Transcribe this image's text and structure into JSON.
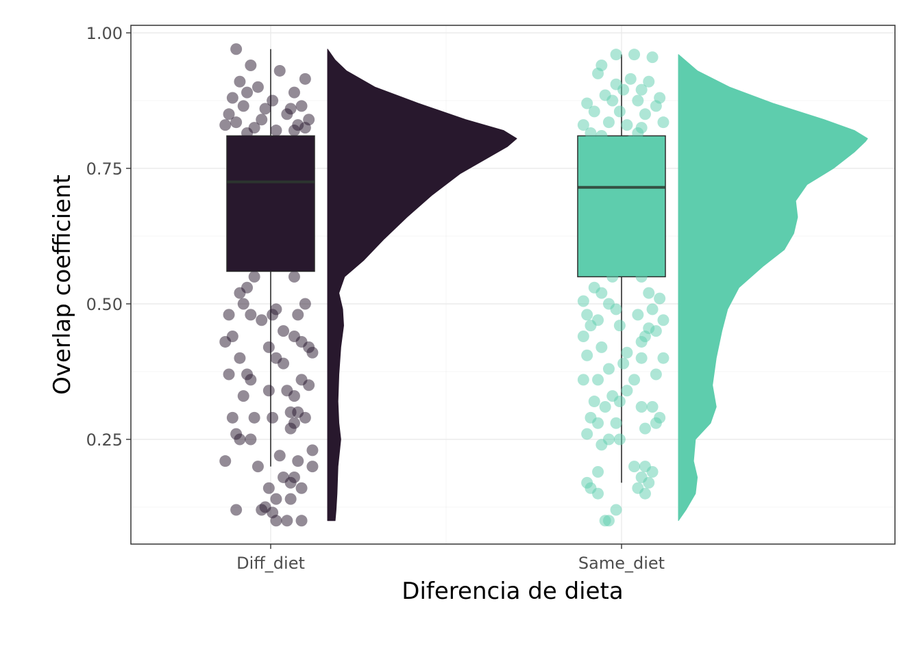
{
  "chart_data": {
    "type": "raincloud",
    "title": "",
    "xlabel": "Diferencia de dieta",
    "ylabel": "Overlap coefficient",
    "categories": [
      "Diff_diet",
      "Same_diet"
    ],
    "ylim": [
      0.06,
      1.02
    ],
    "yticks": [
      0.25,
      0.5,
      0.75,
      1.0
    ],
    "ytick_labels": [
      "0.25",
      "0.50",
      "0.75",
      "1.00"
    ],
    "grid": true,
    "legend": "none",
    "series": [
      {
        "category": "Diff_diet",
        "color": "#28182d",
        "point_opacity": 0.5,
        "box": {
          "min": 0.2,
          "q1": 0.56,
          "median": 0.725,
          "q3": 0.81,
          "max": 0.97
        },
        "density": [
          [
            0.1,
            0.04
          ],
          [
            0.12,
            0.045
          ],
          [
            0.15,
            0.05
          ],
          [
            0.2,
            0.055
          ],
          [
            0.25,
            0.07
          ],
          [
            0.28,
            0.06
          ],
          [
            0.32,
            0.055
          ],
          [
            0.37,
            0.06
          ],
          [
            0.42,
            0.07
          ],
          [
            0.46,
            0.085
          ],
          [
            0.49,
            0.08
          ],
          [
            0.52,
            0.06
          ],
          [
            0.55,
            0.09
          ],
          [
            0.58,
            0.19
          ],
          [
            0.62,
            0.3
          ],
          [
            0.66,
            0.42
          ],
          [
            0.7,
            0.55
          ],
          [
            0.74,
            0.7
          ],
          [
            0.77,
            0.85
          ],
          [
            0.79,
            0.95
          ],
          [
            0.805,
            1.0
          ],
          [
            0.82,
            0.93
          ],
          [
            0.84,
            0.73
          ],
          [
            0.87,
            0.48
          ],
          [
            0.9,
            0.25
          ],
          [
            0.93,
            0.1
          ],
          [
            0.95,
            0.04
          ],
          [
            0.97,
            0.0
          ]
        ],
        "points": [
          [
            -0.19,
            0.97
          ],
          [
            -0.11,
            0.94
          ],
          [
            -0.17,
            0.91
          ],
          [
            0.05,
            0.93
          ],
          [
            0.19,
            0.915
          ],
          [
            -0.13,
            0.89
          ],
          [
            -0.07,
            0.9
          ],
          [
            -0.21,
            0.88
          ],
          [
            0.13,
            0.89
          ],
          [
            0.01,
            0.875
          ],
          [
            -0.15,
            0.865
          ],
          [
            0.17,
            0.865
          ],
          [
            -0.23,
            0.85
          ],
          [
            -0.03,
            0.86
          ],
          [
            0.09,
            0.85
          ],
          [
            0.21,
            0.84
          ],
          [
            -0.19,
            0.835
          ],
          [
            0.15,
            0.83
          ],
          [
            -0.09,
            0.825
          ],
          [
            0.03,
            0.82
          ],
          [
            0.19,
            0.825
          ],
          [
            -0.25,
            0.83
          ],
          [
            -0.05,
            0.84
          ],
          [
            0.11,
            0.86
          ],
          [
            -0.17,
            0.8
          ],
          [
            0.07,
            0.8
          ],
          [
            0.13,
            0.82
          ],
          [
            -0.13,
            0.815
          ],
          [
            -0.09,
            0.55
          ],
          [
            0.13,
            0.55
          ],
          [
            -0.13,
            0.53
          ],
          [
            -0.17,
            0.52
          ],
          [
            -0.15,
            0.5
          ],
          [
            0.03,
            0.49
          ],
          [
            0.19,
            0.5
          ],
          [
            -0.23,
            0.48
          ],
          [
            -0.11,
            0.48
          ],
          [
            -0.05,
            0.47
          ],
          [
            0.01,
            0.48
          ],
          [
            0.15,
            0.48
          ],
          [
            -0.25,
            0.43
          ],
          [
            -0.21,
            0.44
          ],
          [
            0.07,
            0.45
          ],
          [
            0.13,
            0.44
          ],
          [
            0.17,
            0.43
          ],
          [
            -0.01,
            0.42
          ],
          [
            0.21,
            0.42
          ],
          [
            0.23,
            0.41
          ],
          [
            0.03,
            0.4
          ],
          [
            0.07,
            0.39
          ],
          [
            -0.17,
            0.4
          ],
          [
            -0.13,
            0.37
          ],
          [
            -0.11,
            0.36
          ],
          [
            -0.23,
            0.37
          ],
          [
            0.17,
            0.36
          ],
          [
            0.21,
            0.35
          ],
          [
            0.13,
            0.33
          ],
          [
            -0.15,
            0.33
          ],
          [
            -0.01,
            0.34
          ],
          [
            0.09,
            0.34
          ],
          [
            -0.21,
            0.29
          ],
          [
            -0.09,
            0.29
          ],
          [
            0.01,
            0.29
          ],
          [
            0.11,
            0.3
          ],
          [
            0.15,
            0.3
          ],
          [
            0.19,
            0.29
          ],
          [
            0.13,
            0.28
          ],
          [
            0.11,
            0.27
          ],
          [
            -0.19,
            0.26
          ],
          [
            -0.17,
            0.25
          ],
          [
            -0.11,
            0.25
          ],
          [
            0.23,
            0.23
          ],
          [
            0.05,
            0.22
          ],
          [
            -0.25,
            0.21
          ],
          [
            0.15,
            0.21
          ],
          [
            0.23,
            0.2
          ],
          [
            -0.07,
            0.2
          ],
          [
            0.07,
            0.18
          ],
          [
            0.13,
            0.18
          ],
          [
            0.11,
            0.17
          ],
          [
            0.17,
            0.16
          ],
          [
            -0.01,
            0.16
          ],
          [
            0.03,
            0.14
          ],
          [
            0.11,
            0.14
          ],
          [
            -0.19,
            0.12
          ],
          [
            -0.05,
            0.12
          ],
          [
            -0.03,
            0.125
          ],
          [
            0.01,
            0.115
          ],
          [
            0.03,
            0.1
          ],
          [
            0.09,
            0.1
          ],
          [
            0.17,
            0.1
          ]
        ]
      },
      {
        "category": "Same_diet",
        "color": "#5ecdad",
        "point_opacity": 0.5,
        "box": {
          "min": 0.17,
          "q1": 0.55,
          "median": 0.715,
          "q3": 0.81,
          "max": 0.96
        },
        "density": [
          [
            0.1,
            0.0
          ],
          [
            0.12,
            0.04
          ],
          [
            0.15,
            0.09
          ],
          [
            0.18,
            0.1
          ],
          [
            0.21,
            0.08
          ],
          [
            0.25,
            0.09
          ],
          [
            0.28,
            0.17
          ],
          [
            0.31,
            0.2
          ],
          [
            0.35,
            0.18
          ],
          [
            0.4,
            0.2
          ],
          [
            0.45,
            0.23
          ],
          [
            0.49,
            0.26
          ],
          [
            0.53,
            0.32
          ],
          [
            0.57,
            0.45
          ],
          [
            0.6,
            0.56
          ],
          [
            0.63,
            0.61
          ],
          [
            0.66,
            0.63
          ],
          [
            0.69,
            0.62
          ],
          [
            0.72,
            0.68
          ],
          [
            0.75,
            0.82
          ],
          [
            0.78,
            0.93
          ],
          [
            0.8,
            0.99
          ],
          [
            0.805,
            1.0
          ],
          [
            0.82,
            0.93
          ],
          [
            0.84,
            0.77
          ],
          [
            0.87,
            0.5
          ],
          [
            0.9,
            0.27
          ],
          [
            0.93,
            0.1
          ],
          [
            0.96,
            0.0
          ]
        ],
        "points": [
          [
            -0.03,
            0.96
          ],
          [
            0.07,
            0.96
          ],
          [
            0.17,
            0.955
          ],
          [
            -0.11,
            0.94
          ],
          [
            -0.13,
            0.925
          ],
          [
            0.05,
            0.915
          ],
          [
            -0.03,
            0.905
          ],
          [
            0.01,
            0.895
          ],
          [
            0.11,
            0.895
          ],
          [
            0.15,
            0.91
          ],
          [
            -0.09,
            0.885
          ],
          [
            0.21,
            0.88
          ],
          [
            -0.19,
            0.87
          ],
          [
            -0.05,
            0.875
          ],
          [
            0.09,
            0.875
          ],
          [
            0.19,
            0.865
          ],
          [
            -0.15,
            0.855
          ],
          [
            -0.01,
            0.855
          ],
          [
            0.13,
            0.85
          ],
          [
            -0.21,
            0.83
          ],
          [
            -0.07,
            0.835
          ],
          [
            0.03,
            0.83
          ],
          [
            0.11,
            0.825
          ],
          [
            0.23,
            0.835
          ],
          [
            -0.17,
            0.815
          ],
          [
            0.09,
            0.815
          ],
          [
            -0.11,
            0.81
          ],
          [
            0.05,
            0.8
          ],
          [
            -0.05,
            0.55
          ],
          [
            0.11,
            0.55
          ],
          [
            -0.15,
            0.53
          ],
          [
            -0.11,
            0.52
          ],
          [
            0.15,
            0.52
          ],
          [
            0.21,
            0.51
          ],
          [
            -0.21,
            0.505
          ],
          [
            -0.07,
            0.5
          ],
          [
            -0.03,
            0.49
          ],
          [
            0.17,
            0.49
          ],
          [
            -0.19,
            0.48
          ],
          [
            -0.13,
            0.47
          ],
          [
            0.09,
            0.48
          ],
          [
            0.23,
            0.47
          ],
          [
            -0.17,
            0.46
          ],
          [
            -0.01,
            0.46
          ],
          [
            0.15,
            0.455
          ],
          [
            0.19,
            0.45
          ],
          [
            -0.21,
            0.44
          ],
          [
            0.13,
            0.44
          ],
          [
            0.11,
            0.43
          ],
          [
            -0.11,
            0.42
          ],
          [
            0.03,
            0.41
          ],
          [
            -0.19,
            0.405
          ],
          [
            0.11,
            0.4
          ],
          [
            0.23,
            0.4
          ],
          [
            0.01,
            0.39
          ],
          [
            -0.07,
            0.38
          ],
          [
            0.19,
            0.37
          ],
          [
            -0.21,
            0.36
          ],
          [
            -0.13,
            0.36
          ],
          [
            0.07,
            0.36
          ],
          [
            -0.05,
            0.33
          ],
          [
            0.03,
            0.34
          ],
          [
            -0.15,
            0.32
          ],
          [
            -0.01,
            0.32
          ],
          [
            -0.09,
            0.31
          ],
          [
            0.11,
            0.31
          ],
          [
            0.17,
            0.31
          ],
          [
            0.21,
            0.29
          ],
          [
            0.19,
            0.28
          ],
          [
            -0.17,
            0.29
          ],
          [
            -0.13,
            0.28
          ],
          [
            -0.03,
            0.28
          ],
          [
            -0.19,
            0.26
          ],
          [
            0.13,
            0.27
          ],
          [
            -0.07,
            0.25
          ],
          [
            -0.01,
            0.25
          ],
          [
            -0.11,
            0.24
          ],
          [
            0.07,
            0.2
          ],
          [
            0.13,
            0.2
          ],
          [
            -0.13,
            0.19
          ],
          [
            0.17,
            0.19
          ],
          [
            0.11,
            0.18
          ],
          [
            0.15,
            0.17
          ],
          [
            -0.19,
            0.17
          ],
          [
            -0.17,
            0.16
          ],
          [
            0.09,
            0.16
          ],
          [
            -0.13,
            0.15
          ],
          [
            0.13,
            0.15
          ],
          [
            -0.03,
            0.12
          ],
          [
            -0.09,
            0.1
          ],
          [
            -0.07,
            0.1
          ]
        ]
      }
    ]
  }
}
